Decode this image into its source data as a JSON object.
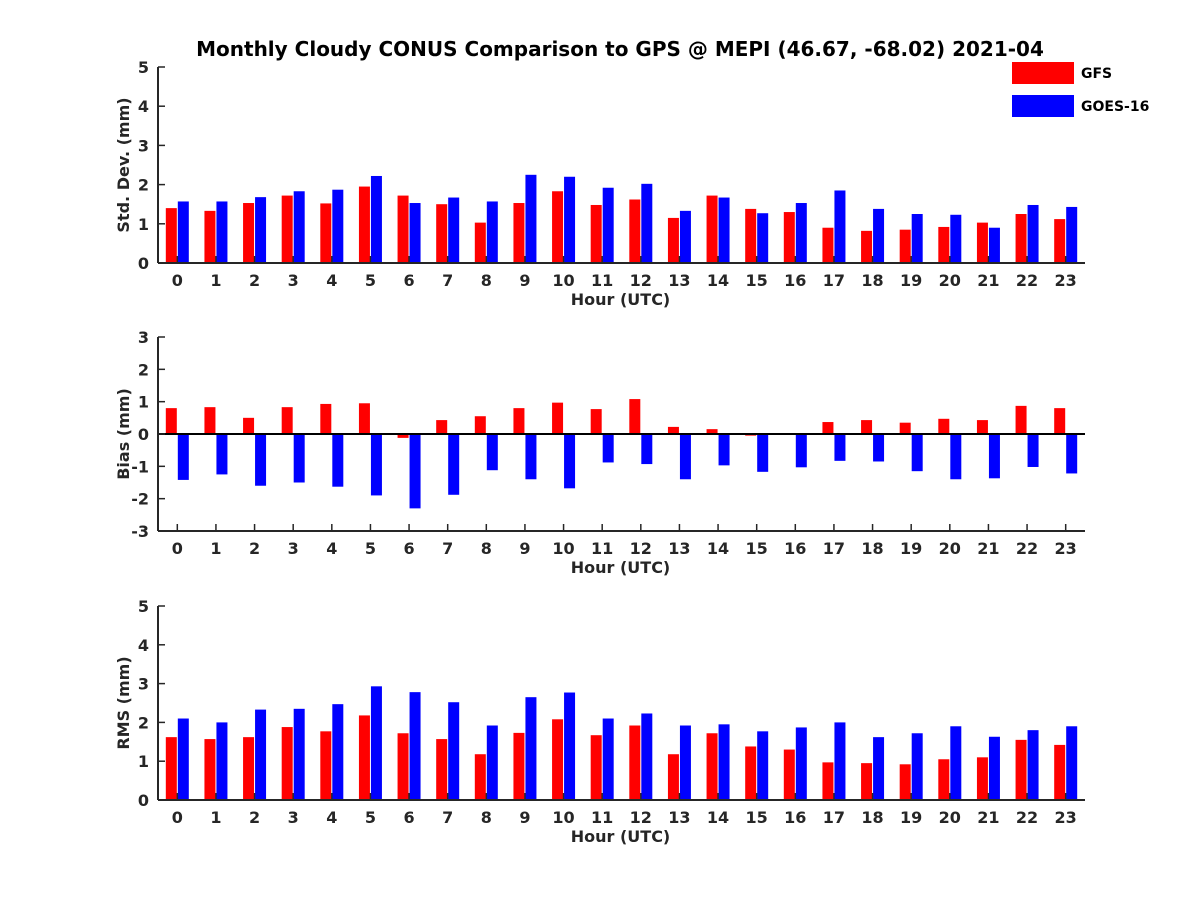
{
  "title": "Monthly Cloudy CONUS Comparison to GPS @ MEPI (46.67, -68.02) 2021-04",
  "colors": {
    "GFS": "#ff0000",
    "GOES-16": "#0000ff"
  },
  "legend": {
    "position": "top-right",
    "entries": [
      "GFS",
      "GOES-16"
    ]
  },
  "chart_data": [
    {
      "type": "bar",
      "xlabel": "Hour (UTC)",
      "ylabel": "Std. Dev. (mm)",
      "ylim": [
        0,
        5
      ],
      "yticks": [
        0,
        1,
        2,
        3,
        4,
        5
      ],
      "categories": [
        "0",
        "1",
        "2",
        "3",
        "4",
        "5",
        "6",
        "7",
        "8",
        "9",
        "10",
        "11",
        "12",
        "13",
        "14",
        "15",
        "16",
        "17",
        "18",
        "19",
        "20",
        "21",
        "22",
        "23"
      ],
      "series": [
        {
          "name": "GFS",
          "values": [
            1.4,
            1.33,
            1.53,
            1.72,
            1.52,
            1.95,
            1.72,
            1.5,
            1.03,
            1.53,
            1.83,
            1.48,
            1.62,
            1.15,
            1.72,
            1.38,
            1.3,
            0.9,
            0.82,
            0.85,
            0.92,
            1.03,
            1.25,
            1.12
          ]
        },
        {
          "name": "GOES-16",
          "values": [
            1.57,
            1.57,
            1.68,
            1.83,
            1.87,
            2.22,
            1.53,
            1.67,
            1.57,
            2.25,
            2.2,
            1.92,
            2.02,
            1.33,
            1.67,
            1.27,
            1.53,
            1.85,
            1.38,
            1.25,
            1.23,
            0.9,
            1.48,
            1.43
          ]
        }
      ]
    },
    {
      "type": "bar",
      "xlabel": "Hour (UTC)",
      "ylabel": "Bias (mm)",
      "ylim": [
        -3,
        3
      ],
      "yticks": [
        -3,
        -2,
        -1,
        0,
        1,
        2,
        3
      ],
      "categories": [
        "0",
        "1",
        "2",
        "3",
        "4",
        "5",
        "6",
        "7",
        "8",
        "9",
        "10",
        "11",
        "12",
        "13",
        "14",
        "15",
        "16",
        "17",
        "18",
        "19",
        "20",
        "21",
        "22",
        "23"
      ],
      "series": [
        {
          "name": "GFS",
          "values": [
            0.8,
            0.83,
            0.5,
            0.83,
            0.93,
            0.95,
            -0.12,
            0.43,
            0.55,
            0.8,
            0.97,
            0.77,
            1.08,
            0.22,
            0.15,
            -0.05,
            0.02,
            0.37,
            0.43,
            0.35,
            0.47,
            0.43,
            0.87,
            0.8
          ]
        },
        {
          "name": "GOES-16",
          "values": [
            -1.42,
            -1.25,
            -1.6,
            -1.5,
            -1.63,
            -1.9,
            -2.3,
            -1.88,
            -1.12,
            -1.4,
            -1.68,
            -0.88,
            -0.93,
            -1.4,
            -0.97,
            -1.17,
            -1.03,
            -0.83,
            -0.85,
            -1.15,
            -1.4,
            -1.37,
            -1.02,
            -1.22
          ]
        }
      ]
    },
    {
      "type": "bar",
      "xlabel": "Hour (UTC)",
      "ylabel": "RMS (mm)",
      "ylim": [
        0,
        5
      ],
      "yticks": [
        0,
        1,
        2,
        3,
        4,
        5
      ],
      "categories": [
        "0",
        "1",
        "2",
        "3",
        "4",
        "5",
        "6",
        "7",
        "8",
        "9",
        "10",
        "11",
        "12",
        "13",
        "14",
        "15",
        "16",
        "17",
        "18",
        "19",
        "20",
        "21",
        "22",
        "23"
      ],
      "series": [
        {
          "name": "GFS",
          "values": [
            1.62,
            1.57,
            1.62,
            1.88,
            1.77,
            2.18,
            1.72,
            1.57,
            1.18,
            1.73,
            2.08,
            1.67,
            1.92,
            1.18,
            1.72,
            1.38,
            1.3,
            0.97,
            0.95,
            0.92,
            1.05,
            1.1,
            1.55,
            1.42
          ]
        },
        {
          "name": "GOES-16",
          "values": [
            2.1,
            2.0,
            2.33,
            2.35,
            2.47,
            2.93,
            2.78,
            2.52,
            1.92,
            2.65,
            2.77,
            2.1,
            2.23,
            1.92,
            1.95,
            1.77,
            1.87,
            2.0,
            1.62,
            1.72,
            1.9,
            1.63,
            1.8,
            1.9
          ]
        }
      ]
    }
  ]
}
